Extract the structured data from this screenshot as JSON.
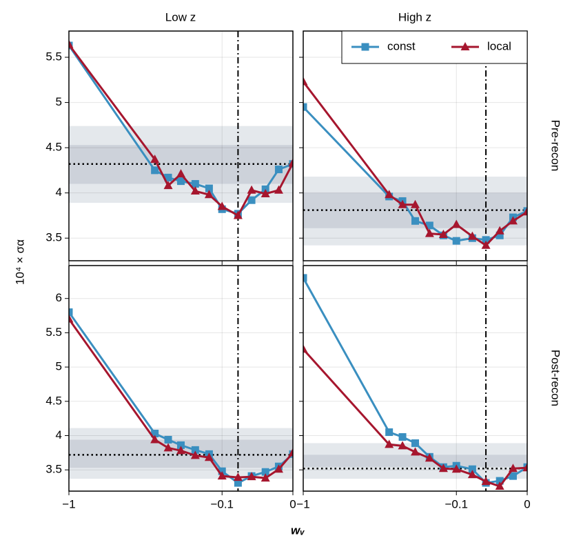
{
  "figure": {
    "column_titles": [
      "Low z",
      "High z"
    ],
    "row_titles": [
      "Pre-recon",
      "Post-recon"
    ],
    "xlabel": "wᵥ",
    "ylabel": "10⁴ × σα"
  },
  "chart_data": [
    {
      "type": "line",
      "xscale": "sqrt",
      "xlim": [
        -1,
        0
      ],
      "ylim": [
        3.25,
        5.79
      ],
      "xticks": [
        {
          "value": -1,
          "label": "−1"
        },
        {
          "value": -0.1,
          "label": "−0.1"
        },
        0
      ],
      "yticks": [
        3.5,
        4,
        4.5,
        5,
        5.5
      ],
      "grid": true,
      "vline": -0.06,
      "hline": 4.32,
      "bands": [
        {
          "range": [
            3.89,
            4.74
          ],
          "color": "#e4e8ec"
        },
        {
          "range": [
            4.1,
            4.53
          ],
          "color": "#cdd2da"
        }
      ],
      "x": [
        -1,
        -0.38,
        -0.31,
        -0.25,
        -0.19,
        -0.14,
        -0.1,
        -0.06,
        -0.034,
        -0.015,
        -0.004,
        0
      ],
      "series": [
        {
          "name": "const",
          "color": "#3a8fc0",
          "marker": "square",
          "values": [
            5.63,
            4.25,
            4.17,
            4.13,
            4.1,
            4.05,
            3.82,
            3.77,
            3.92,
            4.04,
            4.26,
            4.32
          ]
        },
        {
          "name": "local",
          "color": "#a6162e",
          "marker": "triangle",
          "values": [
            5.64,
            4.37,
            4.08,
            4.21,
            4.02,
            3.98,
            3.85,
            3.75,
            4.03,
            3.99,
            4.03,
            4.33
          ]
        }
      ]
    },
    {
      "type": "line",
      "xscale": "sqrt",
      "xlim": [
        -1,
        0
      ],
      "ylim": [
        3.25,
        5.79
      ],
      "xticks": [
        {
          "value": -1,
          "label": "−1"
        },
        {
          "value": -0.1,
          "label": "−0.1"
        },
        0
      ],
      "yticks": [
        3.5,
        4,
        4.5,
        5,
        5.5
      ],
      "grid": true,
      "vline": -0.034,
      "hline": 3.81,
      "legend": "upper right",
      "bands": [
        {
          "range": [
            3.42,
            4.18
          ],
          "color": "#e4e8ec"
        },
        {
          "range": [
            3.61,
            4.0
          ],
          "color": "#cdd2da"
        }
      ],
      "x": [
        -1,
        -0.38,
        -0.31,
        -0.25,
        -0.19,
        -0.14,
        -0.1,
        -0.06,
        -0.034,
        -0.015,
        -0.004,
        0
      ],
      "series": [
        {
          "name": "const",
          "color": "#3a8fc0",
          "marker": "square",
          "values": [
            4.95,
            3.96,
            3.91,
            3.69,
            3.64,
            3.53,
            3.47,
            3.5,
            3.48,
            3.53,
            3.73,
            3.8
          ]
        },
        {
          "name": "local",
          "color": "#a6162e",
          "marker": "triangle",
          "values": [
            5.23,
            3.98,
            3.87,
            3.87,
            3.55,
            3.54,
            3.65,
            3.52,
            3.42,
            3.58,
            3.69,
            3.79
          ]
        }
      ]
    },
    {
      "type": "line",
      "xscale": "sqrt",
      "xlim": [
        -1,
        0
      ],
      "ylim": [
        3.19,
        6.48
      ],
      "xticks": [
        {
          "value": -1,
          "label": "−1"
        },
        {
          "value": -0.1,
          "label": "−0.1"
        },
        0
      ],
      "yticks": [
        3.5,
        4,
        4.5,
        5,
        5.5,
        6
      ],
      "grid": true,
      "vline": -0.06,
      "hline": 3.72,
      "bands": [
        {
          "range": [
            3.37,
            4.11
          ],
          "color": "#e4e8ec"
        },
        {
          "range": [
            3.53,
            3.94
          ],
          "color": "#cdd2da"
        }
      ],
      "x": [
        -1,
        -0.38,
        -0.31,
        -0.25,
        -0.19,
        -0.14,
        -0.1,
        -0.06,
        -0.034,
        -0.015,
        -0.004,
        0
      ],
      "series": [
        {
          "name": "const",
          "color": "#3a8fc0",
          "marker": "square",
          "values": [
            5.8,
            4.03,
            3.94,
            3.86,
            3.79,
            3.73,
            3.48,
            3.31,
            3.41,
            3.47,
            3.55,
            3.73
          ]
        },
        {
          "name": "local",
          "color": "#a6162e",
          "marker": "triangle",
          "values": [
            5.7,
            3.94,
            3.82,
            3.78,
            3.71,
            3.68,
            3.41,
            3.39,
            3.4,
            3.38,
            3.51,
            3.75
          ]
        }
      ]
    },
    {
      "type": "line",
      "xscale": "sqrt",
      "xlim": [
        -1,
        0
      ],
      "ylim": [
        3.19,
        6.48
      ],
      "xticks": [
        {
          "value": -1,
          "label": "−1"
        },
        {
          "value": -0.1,
          "label": "−0.1"
        },
        0
      ],
      "yticks": [
        3.5,
        4,
        4.5,
        5,
        5.5,
        6
      ],
      "grid": true,
      "vline": -0.034,
      "hline": 3.52,
      "bands": [
        {
          "range": [
            3.37,
            3.89
          ],
          "color": "#e4e8ec"
        },
        {
          "range": [
            3.54,
            3.72
          ],
          "color": "#cdd2da"
        }
      ],
      "x": [
        -1,
        -0.38,
        -0.31,
        -0.25,
        -0.19,
        -0.14,
        -0.1,
        -0.06,
        -0.034,
        -0.015,
        -0.004,
        0
      ],
      "series": [
        {
          "name": "const",
          "color": "#3a8fc0",
          "marker": "square",
          "values": [
            6.3,
            4.05,
            3.98,
            3.89,
            3.69,
            3.54,
            3.56,
            3.51,
            3.31,
            3.34,
            3.41,
            3.54
          ]
        },
        {
          "name": "local",
          "color": "#a6162e",
          "marker": "triangle",
          "values": [
            5.26,
            3.87,
            3.85,
            3.76,
            3.67,
            3.52,
            3.51,
            3.43,
            3.33,
            3.26,
            3.52,
            3.53
          ]
        }
      ]
    }
  ]
}
